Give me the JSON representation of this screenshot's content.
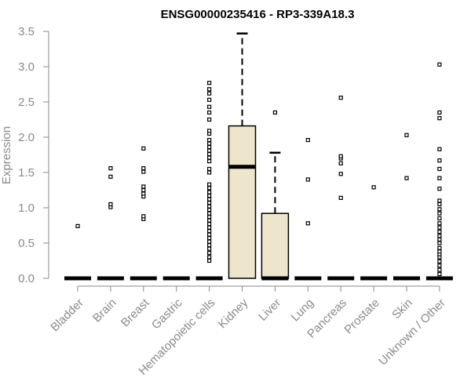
{
  "chart_data": {
    "type": "box",
    "title": "ENSG00000235416 - RP3-339A18.3",
    "xlabel": "",
    "ylabel": "Expression",
    "ylim": [
      0,
      3.5
    ],
    "yticks": [
      "0.0",
      "0.5",
      "1.0",
      "1.5",
      "2.0",
      "2.5",
      "3.0",
      "3.5"
    ],
    "box_fill": "#ede6cc",
    "categories": [
      "Bladder",
      "Brain",
      "Breast",
      "Gastric",
      "Hematopoietic cells",
      "Kidney",
      "Liver",
      "Lung",
      "Pancreas",
      "Prostate",
      "Skin",
      "Unknown / Other"
    ],
    "boxes": [
      {
        "q1": 0,
        "median": 0,
        "q3": 0,
        "whisker_low": 0,
        "whisker_high": 0,
        "outliers": [
          0.74
        ]
      },
      {
        "q1": 0,
        "median": 0,
        "q3": 0,
        "whisker_low": 0,
        "whisker_high": 0,
        "outliers": [
          1.01,
          1.05,
          1.44,
          1.56
        ]
      },
      {
        "q1": 0,
        "median": 0,
        "q3": 0,
        "whisker_low": 0,
        "whisker_high": 0,
        "outliers": [
          0.84,
          0.88,
          1.16,
          1.2,
          1.25,
          1.3,
          1.51,
          1.56,
          1.84
        ]
      },
      {
        "q1": 0,
        "median": 0,
        "q3": 0,
        "whisker_low": 0,
        "whisker_high": 0,
        "outliers": []
      },
      {
        "q1": 0,
        "median": 0,
        "q3": 0,
        "whisker_low": 0,
        "whisker_high": 0,
        "outliers": [
          0.25,
          0.3,
          0.36,
          0.42,
          0.47,
          0.52,
          0.57,
          0.62,
          0.67,
          0.72,
          0.77,
          0.82,
          0.87,
          0.92,
          0.97,
          1.02,
          1.07,
          1.12,
          1.17,
          1.22,
          1.28,
          1.33,
          1.5,
          1.55,
          1.66,
          1.71,
          1.76,
          1.81,
          1.86,
          1.91,
          1.96,
          2.05,
          2.09,
          2.25,
          2.35,
          2.43,
          2.53,
          2.62,
          2.68,
          2.77
        ]
      },
      {
        "q1": 0,
        "median": 1.58,
        "q3": 2.16,
        "whisker_low": 0,
        "whisker_high": 3.47,
        "outliers": []
      },
      {
        "q1": 0,
        "median": 0,
        "q3": 0.92,
        "whisker_low": 0,
        "whisker_high": 1.78,
        "outliers": [
          2.35
        ]
      },
      {
        "q1": 0,
        "median": 0,
        "q3": 0,
        "whisker_low": 0,
        "whisker_high": 0,
        "outliers": [
          0.78,
          1.4,
          1.96
        ]
      },
      {
        "q1": 0,
        "median": 0,
        "q3": 0,
        "whisker_low": 0,
        "whisker_high": 0,
        "outliers": [
          1.14,
          1.48,
          1.63,
          1.7,
          1.73,
          2.56
        ]
      },
      {
        "q1": 0,
        "median": 0,
        "q3": 0,
        "whisker_low": 0,
        "whisker_high": 0,
        "outliers": [
          1.29
        ]
      },
      {
        "q1": 0,
        "median": 0,
        "q3": 0,
        "whisker_low": 0,
        "whisker_high": 0,
        "outliers": [
          1.42,
          2.03
        ]
      },
      {
        "q1": 0,
        "median": 0,
        "q3": 0,
        "whisker_low": 0,
        "whisker_high": 0,
        "outliers": [
          0.06,
          0.12,
          0.18,
          0.24,
          0.3,
          0.34,
          0.38,
          0.43,
          0.5,
          0.55,
          0.6,
          0.66,
          0.72,
          0.78,
          0.85,
          0.92,
          0.98,
          1.05,
          1.1,
          1.27,
          1.42,
          1.55,
          1.67,
          1.83,
          2.27,
          2.35,
          3.03
        ]
      }
    ]
  }
}
